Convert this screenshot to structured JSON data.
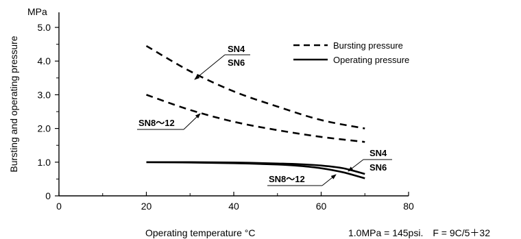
{
  "chart_data": {
    "type": "line",
    "title": "",
    "xlabel": "Operating temperature °C",
    "ylabel": "Bursting and operating pressure",
    "yunit": "MPa",
    "xlim": [
      0,
      80
    ],
    "ylim": [
      0,
      5.0
    ],
    "xticks": [
      0,
      20,
      40,
      60,
      80
    ],
    "yticks": [
      0,
      1.0,
      2.0,
      3.0,
      4.0,
      5.0
    ],
    "xtick_labels": [
      "0",
      "20",
      "40",
      "60",
      "80"
    ],
    "ytick_labels": [
      "0",
      "1.0",
      "2.0",
      "3.0",
      "4.0",
      "5.0"
    ],
    "grid": false,
    "legend_position": "top-right",
    "legend": [
      {
        "label": "Bursting pressure",
        "style": "dashed"
      },
      {
        "label": "Operating pressure",
        "style": "solid"
      }
    ],
    "series": [
      {
        "style": "dashed",
        "label_ref": "SN4 / SN6",
        "x": [
          20,
          30,
          40,
          50,
          60,
          70
        ],
        "y": [
          4.45,
          3.7,
          3.1,
          2.65,
          2.25,
          2.0
        ]
      },
      {
        "style": "dashed",
        "label_ref": "SN8~12",
        "x": [
          20,
          30,
          40,
          50,
          60,
          70
        ],
        "y": [
          3.0,
          2.55,
          2.2,
          1.95,
          1.75,
          1.6
        ]
      },
      {
        "style": "solid",
        "label_ref": "SN4 / SN6",
        "x": [
          20,
          30,
          40,
          50,
          55,
          60,
          65,
          70
        ],
        "y": [
          1.0,
          1.0,
          0.99,
          0.96,
          0.94,
          0.9,
          0.82,
          0.65
        ]
      },
      {
        "style": "solid",
        "label_ref": "SN8~12",
        "x": [
          20,
          30,
          40,
          50,
          55,
          60,
          65,
          70
        ],
        "y": [
          1.0,
          0.99,
          0.97,
          0.93,
          0.89,
          0.82,
          0.7,
          0.52
        ]
      }
    ],
    "annotations": {
      "sn4_upper": "SN4",
      "sn6_upper": "SN6",
      "sn812_upper": "SN8～12",
      "sn4_lower": "SN4",
      "sn6_lower": "SN6",
      "sn812_lower": "SN8～12"
    },
    "footnote": "1.0MPa = 145psi.　F = 9C/5＋32"
  }
}
